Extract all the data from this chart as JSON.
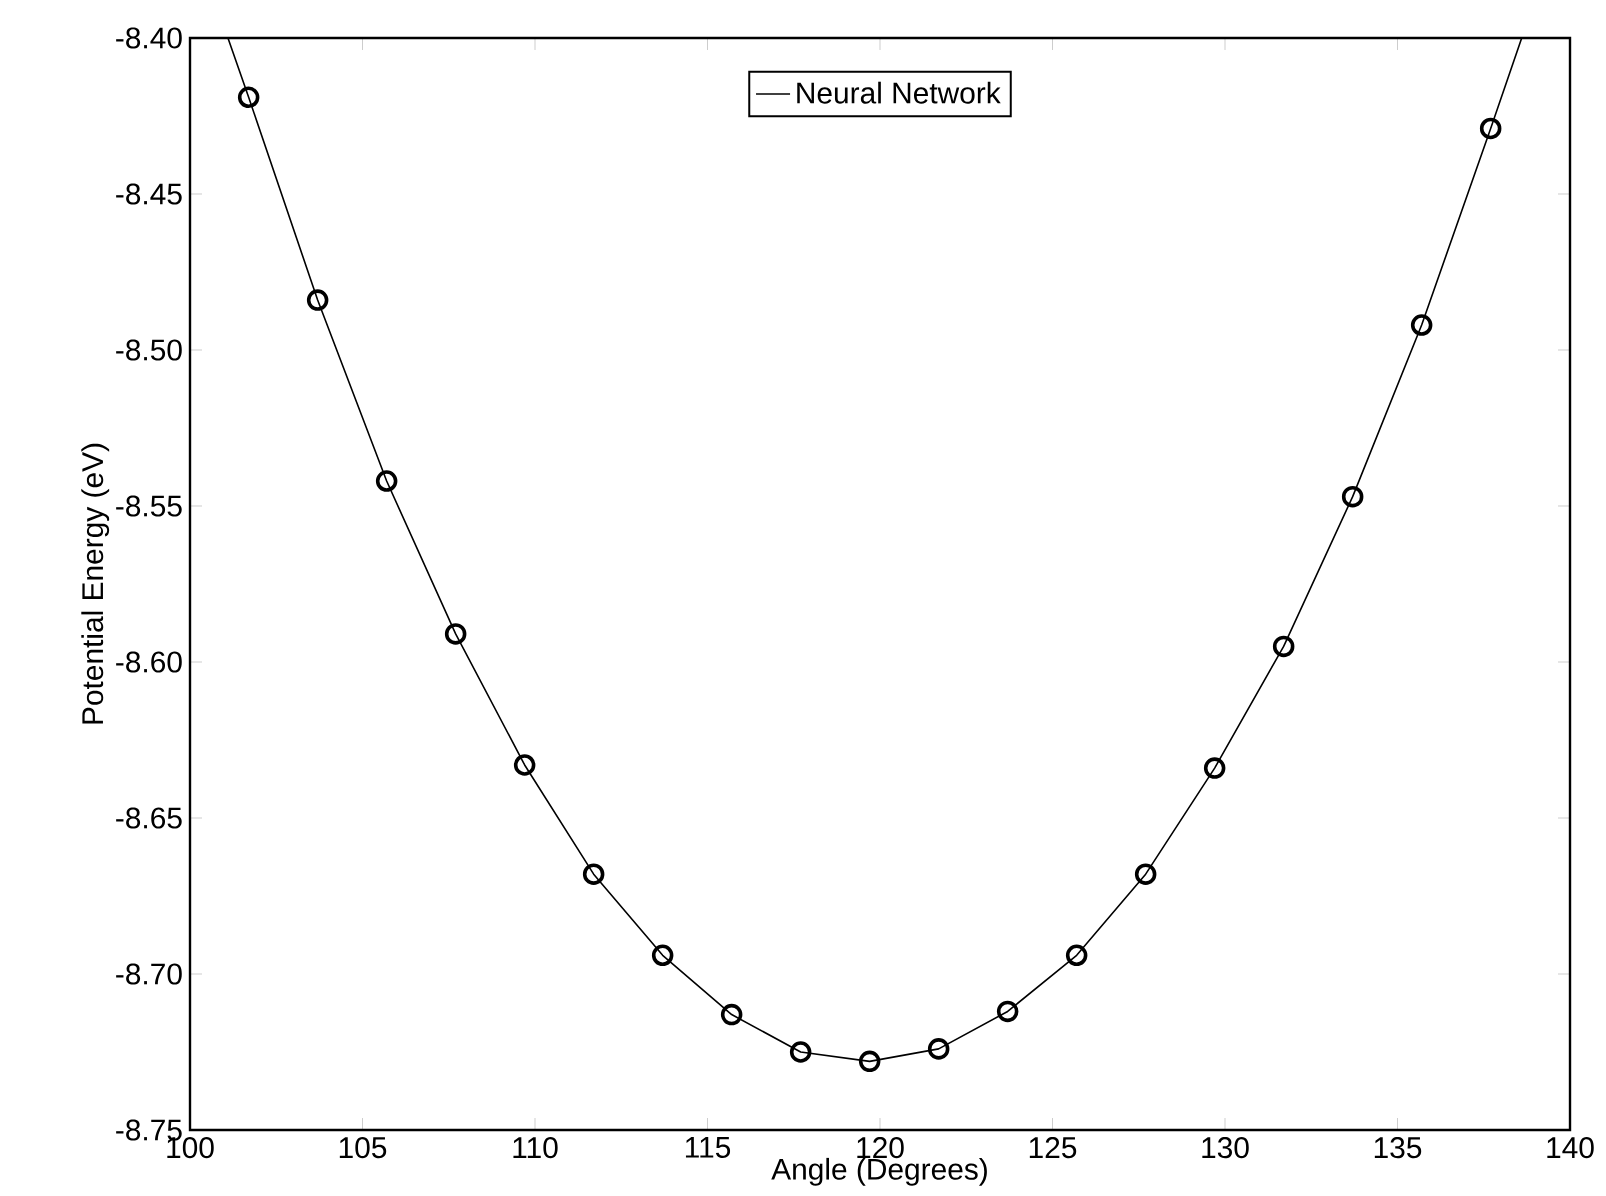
{
  "chart_data": {
    "type": "line",
    "xlabel": "Angle (Degrees)",
    "ylabel": "Potential Energy (eV)",
    "xlim": [
      100,
      140
    ],
    "xticks": [
      100,
      105,
      110,
      115,
      120,
      125,
      130,
      135,
      140
    ],
    "ylim": [
      -8.75,
      -8.4
    ],
    "yticks": [
      {
        "value": -8.75,
        "label": "-8.75"
      },
      {
        "value": -8.7,
        "label": "-8.70"
      },
      {
        "value": -8.65,
        "label": "-8.65"
      },
      {
        "value": -8.6,
        "label": "-8.60"
      },
      {
        "value": -8.55,
        "label": "-8.55"
      },
      {
        "value": -8.5,
        "label": "-8.50"
      },
      {
        "value": -8.45,
        "label": "-8.45"
      },
      {
        "value": -8.4,
        "label": "-8.40"
      }
    ],
    "grid": false,
    "legend": "top",
    "series": [
      {
        "name": "Neural Network",
        "color": "#000000",
        "marker": "none",
        "line_style": "solid",
        "x": [
          101.1,
          101.7,
          103.7,
          105.7,
          107.7,
          109.7,
          111.7,
          113.7,
          115.7,
          117.7,
          119.7,
          121.7,
          123.7,
          125.7,
          127.7,
          129.7,
          131.7,
          133.7,
          135.7,
          137.7,
          138.6
        ],
        "values": [
          -8.4,
          -8.419,
          -8.484,
          -8.542,
          -8.591,
          -8.633,
          -8.668,
          -8.694,
          -8.713,
          -8.725,
          -8.728,
          -8.724,
          -8.712,
          -8.694,
          -8.668,
          -8.634,
          -8.595,
          -8.547,
          -8.492,
          -8.429,
          -8.4
        ]
      },
      {
        "type": "scatter",
        "color": "#000000",
        "marker": "circle",
        "x": [
          101.7,
          103.7,
          105.7,
          107.7,
          109.7,
          111.7,
          113.7,
          115.7,
          117.7,
          119.7,
          121.7,
          123.7,
          125.7,
          127.7,
          129.7,
          131.7,
          133.7,
          135.7,
          137.7
        ],
        "values": [
          -8.419,
          -8.484,
          -8.542,
          -8.591,
          -8.633,
          -8.668,
          -8.694,
          -8.713,
          -8.725,
          -8.728,
          -8.724,
          -8.712,
          -8.694,
          -8.668,
          -8.634,
          -8.595,
          -8.547,
          -8.492,
          -8.429
        ]
      }
    ]
  }
}
